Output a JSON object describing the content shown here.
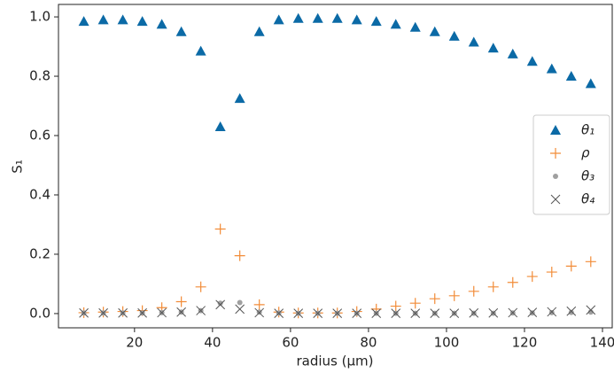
{
  "chart_data": {
    "type": "scatter",
    "xlabel": "radius (μm)",
    "ylabel": "S₁",
    "x": [
      7,
      12,
      17,
      22,
      27,
      32,
      37,
      42,
      47,
      52,
      57,
      62,
      67,
      72,
      77,
      82,
      87,
      92,
      97,
      102,
      107,
      112,
      117,
      122,
      127,
      132,
      137
    ],
    "xlim": [
      0.5,
      142.5
    ],
    "xticks": [
      20,
      40,
      60,
      80,
      100,
      120,
      140
    ],
    "ylim": [
      -0.048,
      1.042
    ],
    "yticks": [
      {
        "value": 0,
        "label": "0.0"
      },
      0.2,
      0.4,
      0.6,
      0.8,
      {
        "value": 1,
        "label": "1.0"
      }
    ],
    "grid": false,
    "legend": "right",
    "series": [
      {
        "name": "θ₁",
        "color": "#0b6aa6",
        "marker": "triangle",
        "values": [
          0.985,
          0.99,
          0.99,
          0.985,
          0.975,
          0.95,
          0.885,
          0.63,
          0.725,
          0.95,
          0.99,
          0.995,
          0.995,
          0.995,
          0.99,
          0.985,
          0.975,
          0.965,
          0.95,
          0.935,
          0.915,
          0.895,
          0.875,
          0.85,
          0.825,
          0.8,
          0.775
        ]
      },
      {
        "name": "ρ",
        "color": "#f28c38",
        "marker": "plus",
        "values": [
          0.003,
          0.005,
          0.007,
          0.01,
          0.02,
          0.04,
          0.09,
          0.285,
          0.195,
          0.03,
          0.005,
          0.002,
          0.002,
          0.002,
          0.007,
          0.015,
          0.025,
          0.035,
          0.05,
          0.06,
          0.075,
          0.09,
          0.105,
          0.125,
          0.14,
          0.16,
          0.175
        ]
      },
      {
        "name": "θ₃",
        "color": "#a0a0a0",
        "marker": "dot",
        "values": [
          0.002,
          0.002,
          0.002,
          0.002,
          0.003,
          0.005,
          0.01,
          0.035,
          0.037,
          0.005,
          0.002,
          0.001,
          0.001,
          0.001,
          0.001,
          0.001,
          0.001,
          0.001,
          0.001,
          0.001,
          0.001,
          0.001,
          0.002,
          0.002,
          0.003,
          0.004,
          0.005
        ]
      },
      {
        "name": "θ₄",
        "color": "#555555",
        "marker": "cross",
        "values": [
          0.002,
          0.002,
          0.002,
          0.002,
          0.003,
          0.005,
          0.01,
          0.03,
          0.015,
          0.003,
          0.001,
          0.001,
          0.001,
          0.001,
          0.001,
          0.001,
          0.001,
          0.001,
          0.001,
          0.001,
          0.002,
          0.002,
          0.003,
          0.004,
          0.006,
          0.008,
          0.012
        ]
      }
    ]
  }
}
